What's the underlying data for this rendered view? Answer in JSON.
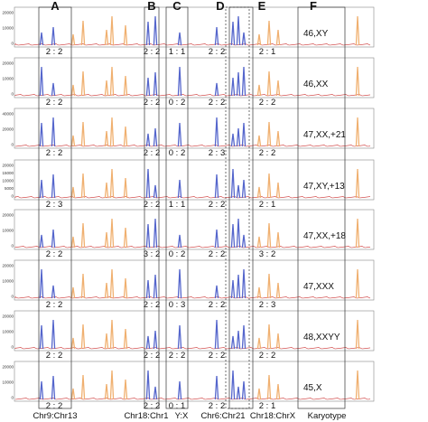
{
  "chart_data": {
    "type": "line",
    "title": "",
    "columns": [
      {
        "letter": "A",
        "pair": "Chr9:Chr13"
      },
      {
        "letter": "B",
        "pair": "Chr18:Chr1"
      },
      {
        "letter": "C",
        "pair": "Y:X"
      },
      {
        "letter": "D",
        "pair": "Chr6:Chr21"
      },
      {
        "letter": "E",
        "pair": "Chr18:ChrX"
      },
      {
        "letter": "F",
        "pair": "Karyotype"
      }
    ],
    "rows": [
      {
        "karyotype": "46,XY",
        "yticks": [
          "20000",
          "10000",
          "0"
        ],
        "ratios": [
          "2 : 2",
          "2 : 2",
          "1 : 1",
          "2 : 2",
          "2 : 1"
        ],
        "ratio_positions": "below"
      },
      {
        "karyotype": "46,XX",
        "yticks": [
          "20000",
          "10000",
          "0"
        ],
        "ratios": [
          "2 : 2",
          "2 : 2",
          "0 : 2",
          "2 : 2",
          "2 : 2"
        ]
      },
      {
        "karyotype": "47,XX,+21",
        "yticks": [
          "40000",
          "20000",
          "0"
        ],
        "ratios": [
          "2 : 2",
          "2 : 2",
          "0 : 2",
          "2 : 3",
          "2 : 2"
        ]
      },
      {
        "karyotype": "47,XY,+13",
        "yticks": [
          "20000",
          "15000",
          "10000",
          "5000",
          "0"
        ],
        "ratios": [
          "2 : 3",
          "2 : 2",
          "1 : 1",
          "2 : 2",
          "2 : 1"
        ]
      },
      {
        "karyotype": "47,XX,+18",
        "yticks": [
          "20000",
          "10000",
          "0"
        ],
        "ratios": [
          "2 : 2",
          "3 : 2",
          "0 : 2",
          "2 : 2",
          "3 : 2"
        ]
      },
      {
        "karyotype": "47,XXX",
        "yticks": [
          "20000",
          "10000",
          "0"
        ],
        "ratios": [
          "2 : 2",
          "2 : 2",
          "0 : 3",
          "2 : 2",
          "2 : 3"
        ]
      },
      {
        "karyotype": "48,XXYY",
        "yticks": [
          "20000",
          "10000",
          "0"
        ],
        "ratios": [
          "2 : 2",
          "2 : 2",
          "2 : 2",
          "2 : 2",
          "2 : 2"
        ]
      },
      {
        "karyotype": "45,X",
        "yticks": [
          "20000",
          "10000",
          "0"
        ],
        "ratios": [
          "2 : 2",
          "2 : 2",
          "0 : 1",
          "2 : 2",
          "2 : 1"
        ]
      }
    ],
    "series": [
      {
        "color": "#5566cc"
      },
      {
        "color": "#f0b070"
      },
      {
        "color": "#cc3333"
      }
    ],
    "grid": false,
    "legend": "none"
  }
}
